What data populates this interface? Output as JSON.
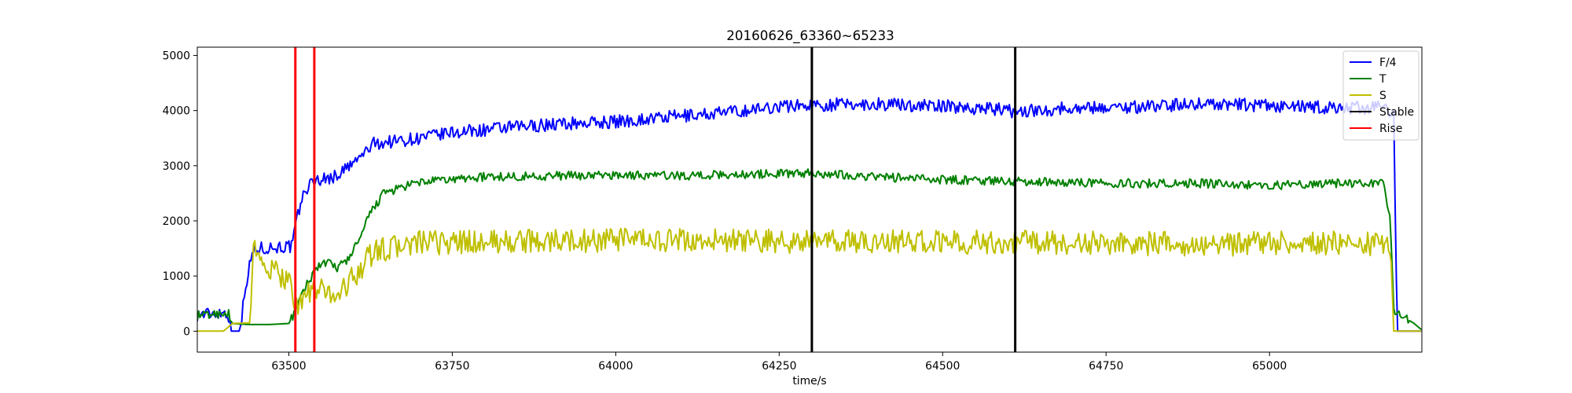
{
  "chart_data": {
    "type": "line",
    "title": "20160626_63360~65233",
    "xlabel": "time/s",
    "ylabel": "",
    "xlim": [
      63360,
      65233
    ],
    "ylim": [
      -380,
      5150
    ],
    "xticks": [
      63500,
      63750,
      64000,
      64250,
      64500,
      64750,
      65000
    ],
    "yticks": [
      0,
      1000,
      2000,
      3000,
      4000,
      5000
    ],
    "grid": false,
    "legend_position": "top-right",
    "series": [
      {
        "name": "F/4",
        "color": "#0000ff",
        "noise": 120,
        "points": [
          [
            63360,
            300
          ],
          [
            63380,
            320
          ],
          [
            63400,
            340
          ],
          [
            63406,
            330
          ],
          [
            63410,
            200
          ],
          [
            63412,
            0
          ],
          [
            63413,
            0
          ],
          [
            63425,
            0
          ],
          [
            63435,
            900
          ],
          [
            63445,
            1450
          ],
          [
            63455,
            1500
          ],
          [
            63470,
            1520
          ],
          [
            63490,
            1530
          ],
          [
            63505,
            1530
          ],
          [
            63512,
            2000
          ],
          [
            63520,
            2400
          ],
          [
            63528,
            2600
          ],
          [
            63540,
            2750
          ],
          [
            63550,
            2750
          ],
          [
            63570,
            2800
          ],
          [
            63600,
            3050
          ],
          [
            63630,
            3400
          ],
          [
            63700,
            3500
          ],
          [
            63750,
            3600
          ],
          [
            63800,
            3650
          ],
          [
            63900,
            3750
          ],
          [
            64000,
            3800
          ],
          [
            64100,
            3900
          ],
          [
            64200,
            4000
          ],
          [
            64250,
            4080
          ],
          [
            64300,
            4100
          ],
          [
            64400,
            4120
          ],
          [
            64500,
            4080
          ],
          [
            64580,
            4030
          ],
          [
            64610,
            3980
          ],
          [
            64700,
            4050
          ],
          [
            64800,
            4070
          ],
          [
            64900,
            4130
          ],
          [
            65000,
            4080
          ],
          [
            65100,
            4050
          ],
          [
            65180,
            4050
          ],
          [
            65190,
            3900
          ],
          [
            65195,
            0
          ],
          [
            65233,
            0
          ]
        ]
      },
      {
        "name": "T",
        "color": "#008000",
        "noise": 80,
        "points": [
          [
            63360,
            280
          ],
          [
            63380,
            300
          ],
          [
            63400,
            330
          ],
          [
            63408,
            320
          ],
          [
            63413,
            140
          ],
          [
            63440,
            120
          ],
          [
            63470,
            120
          ],
          [
            63500,
            140
          ],
          [
            63510,
            350
          ],
          [
            63520,
            650
          ],
          [
            63530,
            900
          ],
          [
            63545,
            1200
          ],
          [
            63560,
            1230
          ],
          [
            63575,
            1150
          ],
          [
            63590,
            1300
          ],
          [
            63610,
            1700
          ],
          [
            63625,
            2150
          ],
          [
            63645,
            2500
          ],
          [
            63700,
            2700
          ],
          [
            63800,
            2800
          ],
          [
            64000,
            2830
          ],
          [
            64100,
            2820
          ],
          [
            64300,
            2870
          ],
          [
            64400,
            2800
          ],
          [
            64500,
            2750
          ],
          [
            64600,
            2720
          ],
          [
            64700,
            2700
          ],
          [
            64800,
            2680
          ],
          [
            64900,
            2680
          ],
          [
            65000,
            2640
          ],
          [
            65100,
            2680
          ],
          [
            65175,
            2680
          ],
          [
            65185,
            2000
          ],
          [
            65190,
            400
          ],
          [
            65205,
            250
          ],
          [
            65220,
            150
          ],
          [
            65233,
            20
          ]
        ]
      },
      {
        "name": "S",
        "color": "#bfbf00",
        "noise": 220,
        "points": [
          [
            63360,
            0
          ],
          [
            63400,
            0
          ],
          [
            63414,
            140
          ],
          [
            63440,
            150
          ],
          [
            63446,
            1680
          ],
          [
            63455,
            1200
          ],
          [
            63480,
            1050
          ],
          [
            63500,
            950
          ],
          [
            63512,
            450
          ],
          [
            63530,
            700
          ],
          [
            63545,
            750
          ],
          [
            63575,
            650
          ],
          [
            63600,
            1000
          ],
          [
            63630,
            1450
          ],
          [
            63700,
            1600
          ],
          [
            64000,
            1650
          ],
          [
            64300,
            1620
          ],
          [
            64500,
            1620
          ],
          [
            64700,
            1600
          ],
          [
            64900,
            1580
          ],
          [
            65100,
            1600
          ],
          [
            65185,
            1580
          ],
          [
            65190,
            0
          ],
          [
            65233,
            0
          ]
        ]
      }
    ],
    "vertical_lines": [
      {
        "name": "Stable",
        "color": "#000000",
        "x": [
          64300,
          64611
        ]
      },
      {
        "name": "Rise",
        "color": "#ff0000",
        "x": [
          63510,
          63539
        ]
      }
    ],
    "legend": [
      {
        "label": "F/4",
        "color": "#0000ff"
      },
      {
        "label": "T",
        "color": "#008000"
      },
      {
        "label": "S",
        "color": "#bfbf00"
      },
      {
        "label": "Stable",
        "color": "#000000"
      },
      {
        "label": "Rise",
        "color": "#ff0000"
      }
    ]
  }
}
